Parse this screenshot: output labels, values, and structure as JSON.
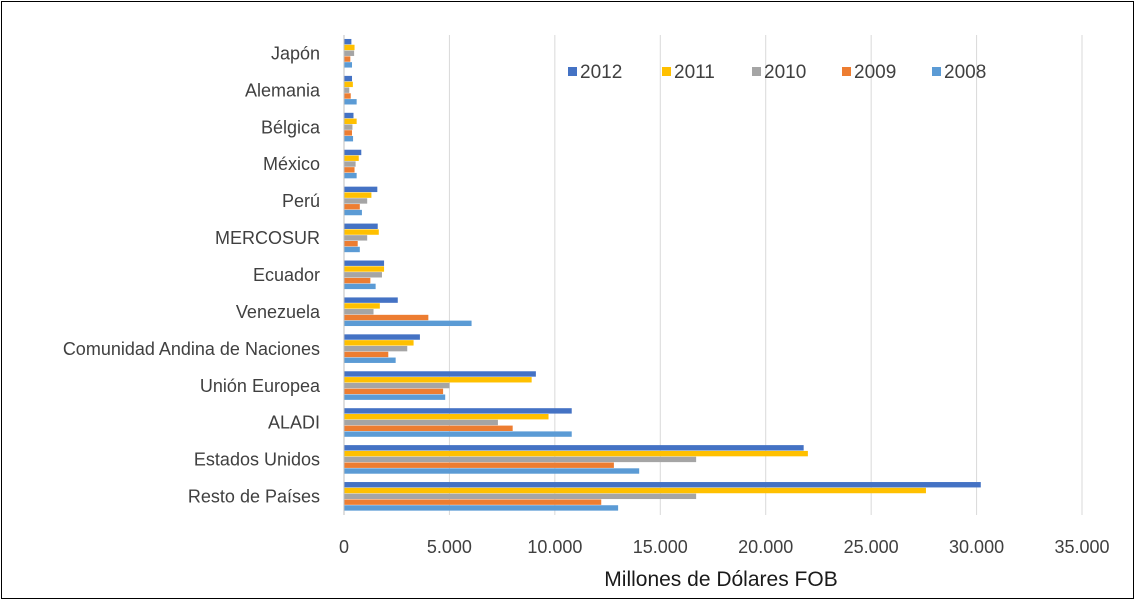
{
  "chart_data": {
    "type": "bar",
    "orientation": "horizontal",
    "title": "",
    "xlabel": "Millones de Dólares FOB",
    "ylabel": "",
    "xlim": [
      0,
      35000
    ],
    "x_ticks": [
      0,
      5000,
      10000,
      15000,
      20000,
      25000,
      30000,
      35000
    ],
    "x_tick_labels": [
      "0",
      "5.000",
      "10.000",
      "15.000",
      "20.000",
      "25.000",
      "30.000",
      "35.000"
    ],
    "grid": "vertical",
    "legend_position": "top-right",
    "categories": [
      "Japón",
      "Alemania",
      "Bélgica",
      "México",
      "Perú",
      "MERCOSUR",
      "Ecuador",
      "Venezuela",
      "Comunidad Andina de Naciones",
      "Unión Europea",
      "ALADI",
      "Estados Unidos",
      "Resto de Países"
    ],
    "series": [
      {
        "name": "2012",
        "color": "#4472c4",
        "values": [
          350,
          380,
          450,
          820,
          1580,
          1600,
          1900,
          2550,
          3600,
          9100,
          10800,
          21800,
          30200
        ]
      },
      {
        "name": "2011",
        "color": "#ffc000",
        "values": [
          500,
          420,
          600,
          700,
          1300,
          1650,
          1900,
          1700,
          3300,
          8900,
          9700,
          22000,
          27600
        ]
      },
      {
        "name": "2010",
        "color": "#a5a5a5",
        "values": [
          480,
          250,
          400,
          550,
          1100,
          1100,
          1800,
          1400,
          3000,
          5000,
          7300,
          16700,
          16700
        ]
      },
      {
        "name": "2009",
        "color": "#ed7d31",
        "values": [
          300,
          320,
          380,
          500,
          750,
          650,
          1250,
          4000,
          2100,
          4700,
          8000,
          12800,
          12200
        ]
      },
      {
        "name": "2008",
        "color": "#5b9bd5",
        "values": [
          380,
          600,
          430,
          600,
          850,
          750,
          1500,
          6050,
          2450,
          4800,
          10800,
          14000,
          13000
        ]
      }
    ]
  }
}
